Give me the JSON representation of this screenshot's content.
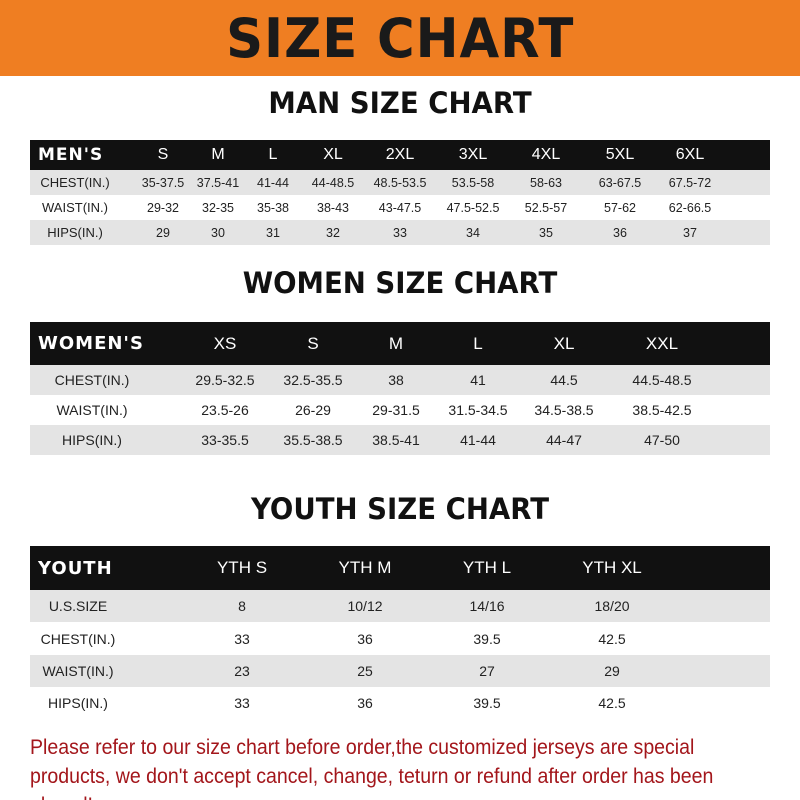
{
  "banner_title": "SIZE CHART",
  "colors": {
    "banner": "#ef7e22",
    "header_row": "#111111",
    "shaded_row": "#e4e4e4",
    "note": "#a3161b"
  },
  "tables": [
    {
      "title": "MAN SIZE CHART",
      "header": [
        "MEN'S",
        "S",
        "M",
        "L",
        "XL",
        "2XL",
        "3XL",
        "4XL",
        "5XL",
        "6XL"
      ],
      "rows": [
        [
          "CHEST(IN.)",
          "35-37.5",
          "37.5-41",
          "41-44",
          "44-48.5",
          "48.5-53.5",
          "53.5-58",
          "58-63",
          "63-67.5",
          "67.5-72"
        ],
        [
          "WAIST(IN.)",
          "29-32",
          "32-35",
          "35-38",
          "38-43",
          "43-47.5",
          "47.5-52.5",
          "52.5-57",
          "57-62",
          "62-66.5"
        ],
        [
          "HIPS(IN.)",
          "29",
          "30",
          "31",
          "32",
          "33",
          "34",
          "35",
          "36",
          "37"
        ]
      ]
    },
    {
      "title": "WOMEN SIZE CHART",
      "header": [
        "WOMEN'S",
        "XS",
        "S",
        "M",
        "L",
        "XL",
        "XXL"
      ],
      "rows": [
        [
          "CHEST(IN.)",
          "29.5-32.5",
          "32.5-35.5",
          "38",
          "41",
          "44.5",
          "44.5-48.5"
        ],
        [
          "WAIST(IN.)",
          "23.5-26",
          "26-29",
          "29-31.5",
          "31.5-34.5",
          "34.5-38.5",
          "38.5-42.5"
        ],
        [
          "HIPS(IN.)",
          "33-35.5",
          "35.5-38.5",
          "38.5-41",
          "41-44",
          "44-47",
          "47-50"
        ]
      ]
    },
    {
      "title": "YOUTH SIZE CHART",
      "header": [
        "YOUTH",
        "YTH S",
        "YTH M",
        "YTH L",
        "YTH XL"
      ],
      "rows": [
        [
          "U.S.SIZE",
          "8",
          "10/12",
          "14/16",
          "18/20"
        ],
        [
          "CHEST(IN.)",
          "33",
          "36",
          "39.5",
          "42.5"
        ],
        [
          "WAIST(IN.)",
          "23",
          "25",
          "27",
          "29"
        ],
        [
          "HIPS(IN.)",
          "33",
          "36",
          "39.5",
          "42.5"
        ]
      ]
    }
  ],
  "note": "Please refer to our size chart before order,the customized jerseys are special products, we don't accept cancel, change, teturn or refund after order has been placed!"
}
